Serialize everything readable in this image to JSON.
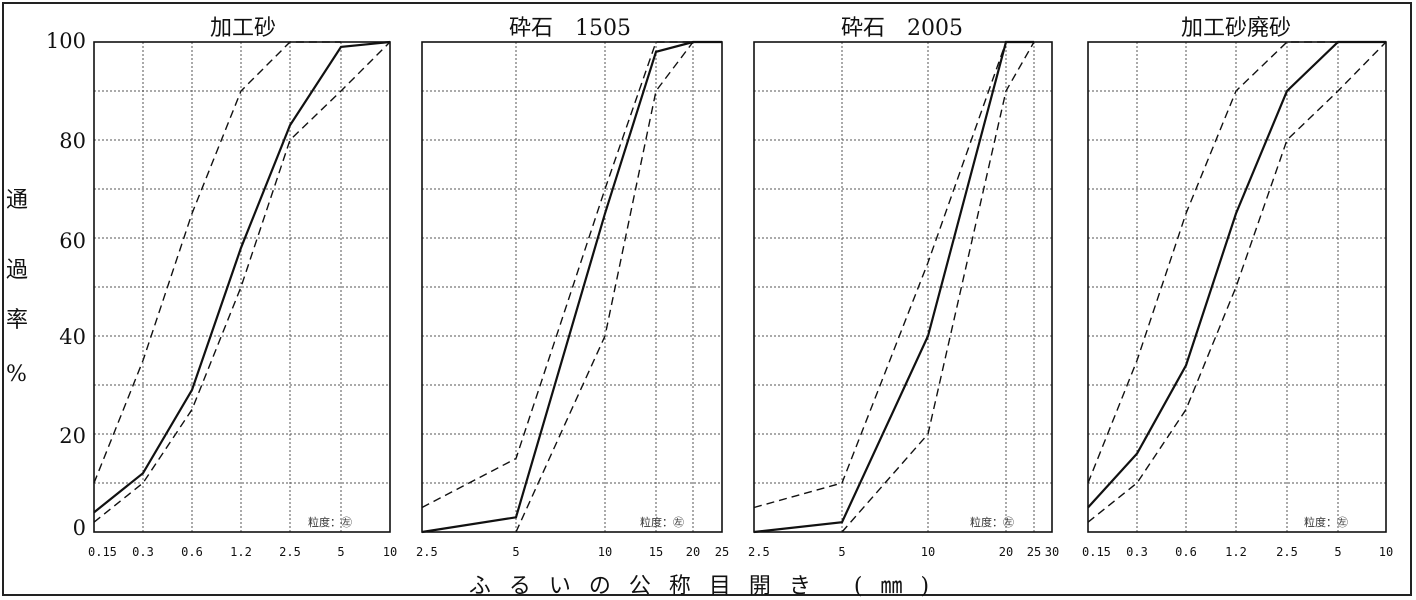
{
  "y_axis": {
    "label_chars": [
      "通",
      "過",
      "率",
      "%"
    ],
    "ticks": [
      "100",
      "80",
      "60",
      "40",
      "20",
      "0"
    ]
  },
  "x_axis_label": "ふるいの公称目開き (㎜)",
  "chart_data": [
    {
      "type": "line",
      "title": "加工砂",
      "x_ticks": [
        "0.15",
        "0.3",
        "0.6",
        "1.2",
        "2.5",
        "5",
        "10"
      ],
      "y_ticks": [
        0,
        20,
        40,
        60,
        80,
        100
      ],
      "ylim": [
        0,
        100
      ],
      "grid": true,
      "annotation": "粒度：㊧",
      "series": [
        {
          "style": "solid",
          "x": [
            "0.15",
            "0.3",
            "0.6",
            "1.2",
            "2.5",
            "5",
            "10"
          ],
          "y": [
            4,
            12,
            29,
            58,
            83,
            99,
            100
          ]
        },
        {
          "style": "dashed",
          "x": [
            "0.15",
            "0.3",
            "0.6",
            "1.2",
            "2.5",
            "5"
          ],
          "y": [
            10,
            35,
            65,
            90,
            100,
            100
          ]
        },
        {
          "style": "dashed",
          "x": [
            "0.15",
            "0.3",
            "0.6",
            "1.2",
            "2.5",
            "5",
            "10"
          ],
          "y": [
            2,
            10,
            25,
            50,
            80,
            90,
            100
          ]
        }
      ]
    },
    {
      "type": "line",
      "title": "砕石　1505",
      "x_ticks": [
        "2.5",
        "5",
        "10",
        "15",
        "20",
        "25"
      ],
      "y_ticks": [
        0,
        20,
        40,
        60,
        80,
        100
      ],
      "ylim": [
        0,
        100
      ],
      "grid": true,
      "annotation": "粒度：㊧",
      "series": [
        {
          "style": "solid",
          "x": [
            "2.5",
            "5",
            "10",
            "15",
            "20",
            "25"
          ],
          "y": [
            0,
            3,
            65,
            98,
            100,
            100
          ]
        },
        {
          "style": "dashed",
          "x": [
            "2.5",
            "5",
            "10",
            "15",
            "20"
          ],
          "y": [
            5,
            15,
            70,
            100,
            100
          ]
        },
        {
          "style": "dashed",
          "x": [
            "5",
            "10",
            "15",
            "20"
          ],
          "y": [
            0,
            40,
            90,
            100
          ]
        }
      ]
    },
    {
      "type": "line",
      "title": "砕石　2005",
      "x_ticks": [
        "2.5",
        "5",
        "10",
        "20",
        "25",
        "30"
      ],
      "y_ticks": [
        0,
        20,
        40,
        60,
        80,
        100
      ],
      "ylim": [
        0,
        100
      ],
      "grid": true,
      "annotation": "粒度：㊧",
      "series": [
        {
          "style": "solid",
          "x": [
            "2.5",
            "5",
            "10",
            "20",
            "25"
          ],
          "y": [
            0,
            2,
            40,
            100,
            100
          ]
        },
        {
          "style": "dashed",
          "x": [
            "2.5",
            "5",
            "10",
            "20"
          ],
          "y": [
            5,
            10,
            55,
            100
          ]
        },
        {
          "style": "dashed",
          "x": [
            "5",
            "10",
            "20",
            "25"
          ],
          "y": [
            0,
            20,
            90,
            100
          ]
        }
      ]
    },
    {
      "type": "line",
      "title": "加工砂廃砂",
      "x_ticks": [
        "0.15",
        "0.3",
        "0.6",
        "1.2",
        "2.5",
        "5",
        "10"
      ],
      "y_ticks": [
        0,
        20,
        40,
        60,
        80,
        100
      ],
      "ylim": [
        0,
        100
      ],
      "grid": true,
      "annotation": "粒度：㊧",
      "series": [
        {
          "style": "solid",
          "x": [
            "0.15",
            "0.3",
            "0.6",
            "1.2",
            "2.5",
            "5",
            "10"
          ],
          "y": [
            5,
            16,
            34,
            65,
            90,
            100,
            100
          ]
        },
        {
          "style": "dashed",
          "x": [
            "0.15",
            "0.3",
            "0.6",
            "1.2",
            "2.5",
            "5"
          ],
          "y": [
            10,
            35,
            65,
            90,
            100,
            100
          ]
        },
        {
          "style": "dashed",
          "x": [
            "0.15",
            "0.3",
            "0.6",
            "1.2",
            "2.5",
            "5",
            "10"
          ],
          "y": [
            2,
            10,
            25,
            50,
            80,
            90,
            100
          ]
        }
      ]
    }
  ]
}
